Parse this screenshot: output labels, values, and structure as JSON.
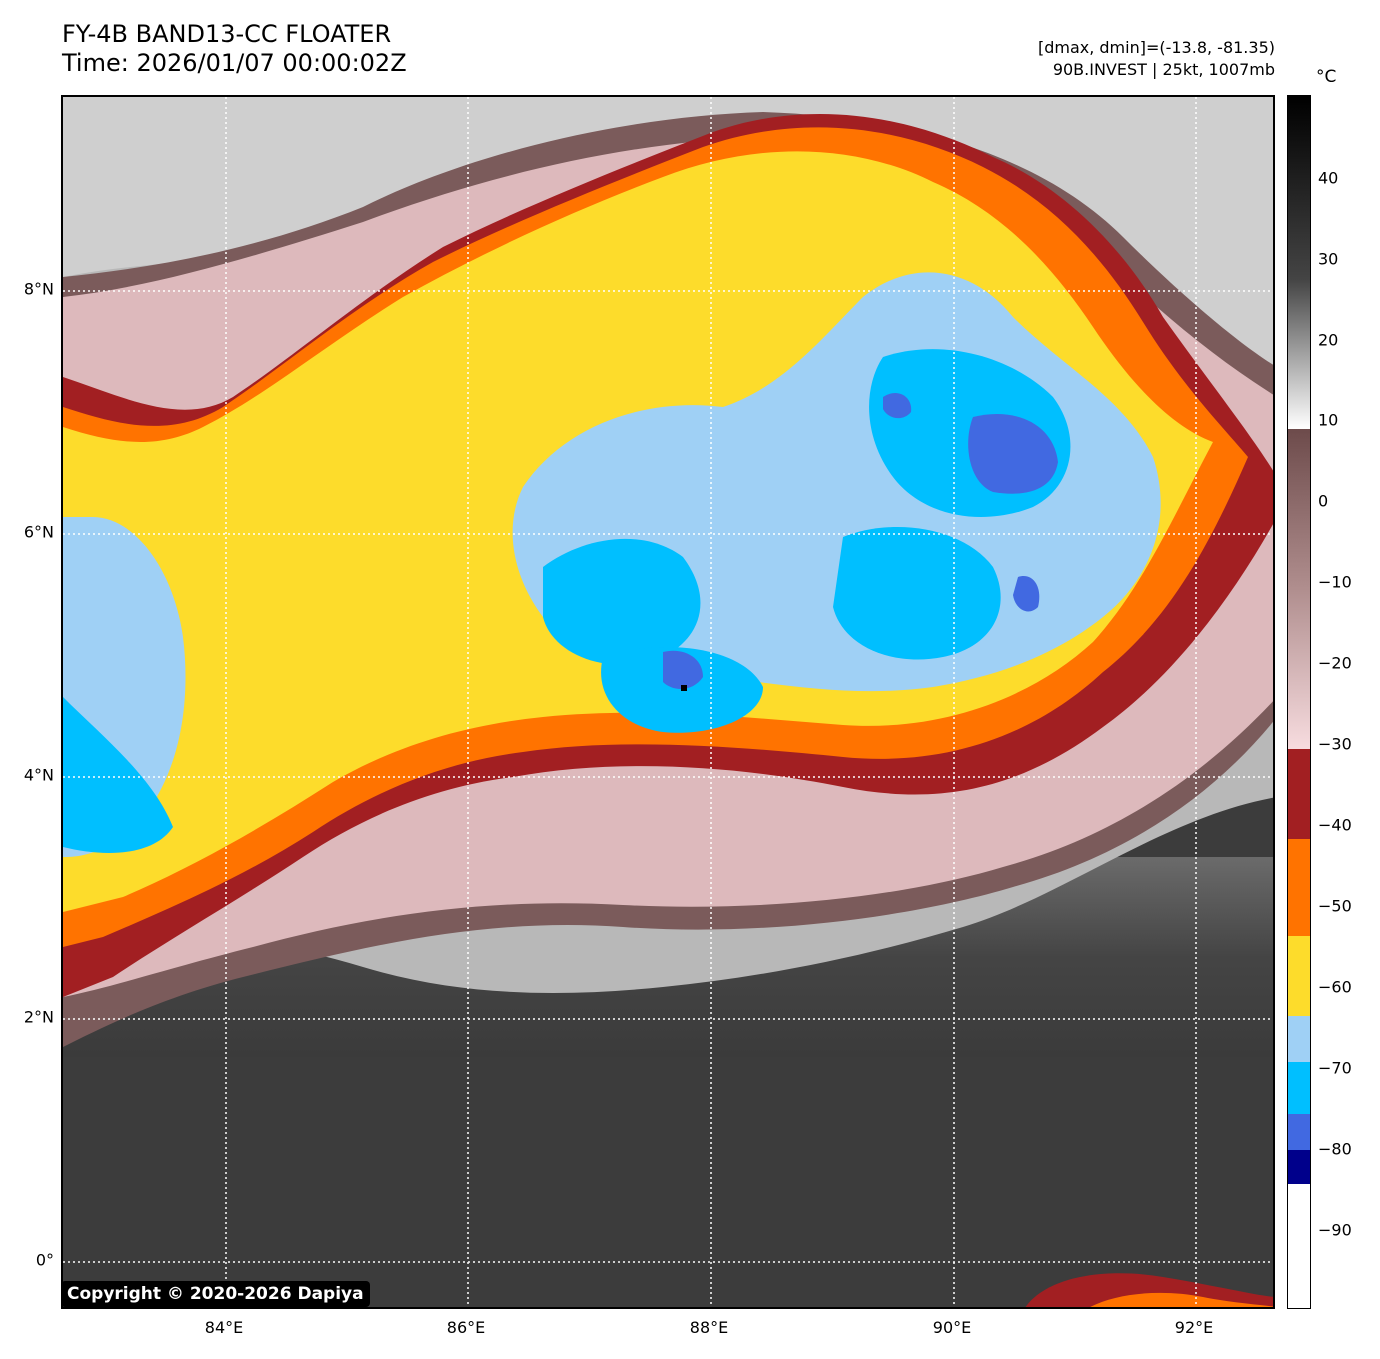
{
  "title": {
    "line1": "FY-4B BAND13-CC FLOATER",
    "line2": "Time: 2026/01/07 00:00:02Z"
  },
  "meta": {
    "line1": "[dmax, dmin]=(-13.8, -81.35)",
    "line2": "90B.INVEST | 25kt, 1007mb"
  },
  "map": {
    "lat_labels": [
      "8°N",
      "6°N",
      "4°N",
      "2°N",
      "0°"
    ],
    "lon_labels": [
      "84°E",
      "86°E",
      "88°E",
      "90°E",
      "92°E"
    ]
  },
  "copyright": "Copyright © 2020-2026 Dapiya",
  "colorbar": {
    "unit": "°C",
    "ticks": [
      "40",
      "30",
      "20",
      "10",
      "0",
      "−10",
      "−20",
      "−30",
      "−40",
      "−50",
      "−60",
      "−70",
      "−80",
      "−90"
    ],
    "colors": {
      "white_below_minus85": "#ffffff",
      "navy": "#00008b",
      "royal_blue": "#4169e1",
      "deep_sky": "#00bfff",
      "light_blue": "#9fd0f5",
      "yellow": "#fddc2b",
      "orange": "#ff7300",
      "dark_red": "#a02020",
      "pink_top": "#f4d5d8",
      "brown": "#7a5a5a",
      "gray_scale_top": "#000000"
    }
  }
}
